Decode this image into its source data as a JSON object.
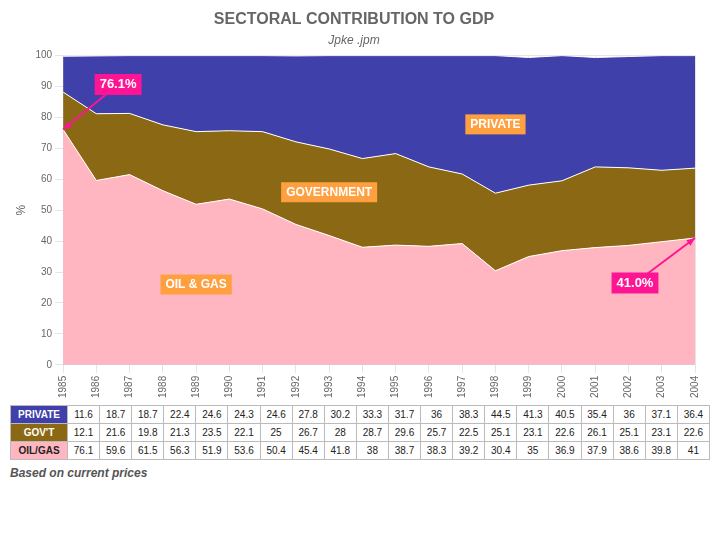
{
  "chart_data": {
    "type": "area",
    "title": "SECTORAL CONTRIBUTION TO GDP",
    "subtitle": "Jpke .jpm",
    "footer": "Based on current prices",
    "ylabel": "%",
    "x": [
      1985,
      1986,
      1987,
      1988,
      1989,
      1990,
      1991,
      1992,
      1993,
      1994,
      1995,
      1996,
      1997,
      1998,
      1999,
      2000,
      2001,
      2002,
      2003,
      2004
    ],
    "series": [
      {
        "name": "OIL/GAS",
        "color": "#FFB6C1",
        "values": [
          76.1,
          59.6,
          61.5,
          56.3,
          51.9,
          53.6,
          50.4,
          45.4,
          41.8,
          38,
          38.7,
          38.3,
          39.2,
          30.4,
          35,
          36.9,
          37.9,
          38.6,
          39.8,
          41
        ]
      },
      {
        "name": "GOV'T",
        "color": "#8B6914",
        "values": [
          12.1,
          21.6,
          19.8,
          21.3,
          23.5,
          22.1,
          25,
          26.7,
          28,
          28.7,
          29.6,
          25.7,
          22.5,
          25.1,
          23.1,
          22.6,
          26.1,
          25.1,
          23.1,
          22.6
        ]
      },
      {
        "name": "PRIVATE",
        "color": "#4040aa",
        "values": [
          11.6,
          18.7,
          18.7,
          22.4,
          24.6,
          24.3,
          24.6,
          27.8,
          30.2,
          33.3,
          31.7,
          36,
          38.3,
          44.5,
          41.3,
          40.5,
          35.4,
          36,
          37.1,
          36.4
        ]
      }
    ],
    "stacked": true,
    "xlim": [
      1985,
      2004
    ],
    "xticks": [
      1985,
      1986,
      1987,
      1988,
      1989,
      1990,
      1991,
      1992,
      1993,
      1994,
      1995,
      1996,
      1997,
      1998,
      1999,
      2000,
      2001,
      2002,
      2003,
      2004
    ],
    "ylim": [
      0,
      100
    ],
    "yticks": [
      0,
      10,
      20,
      30,
      40,
      50,
      60,
      70,
      80,
      90,
      100
    ],
    "grid": true,
    "annotations": [
      {
        "text": "PRIVATE",
        "series": "PRIVATE"
      },
      {
        "text": "GOVERNMENT",
        "series": "GOV'T"
      },
      {
        "text": "OIL & GAS",
        "series": "OIL/GAS"
      },
      {
        "text": "76.1%",
        "series": "OIL/GAS",
        "x": 1985
      },
      {
        "text": "41.0%",
        "series": "OIL/GAS",
        "x": 2004
      }
    ]
  }
}
